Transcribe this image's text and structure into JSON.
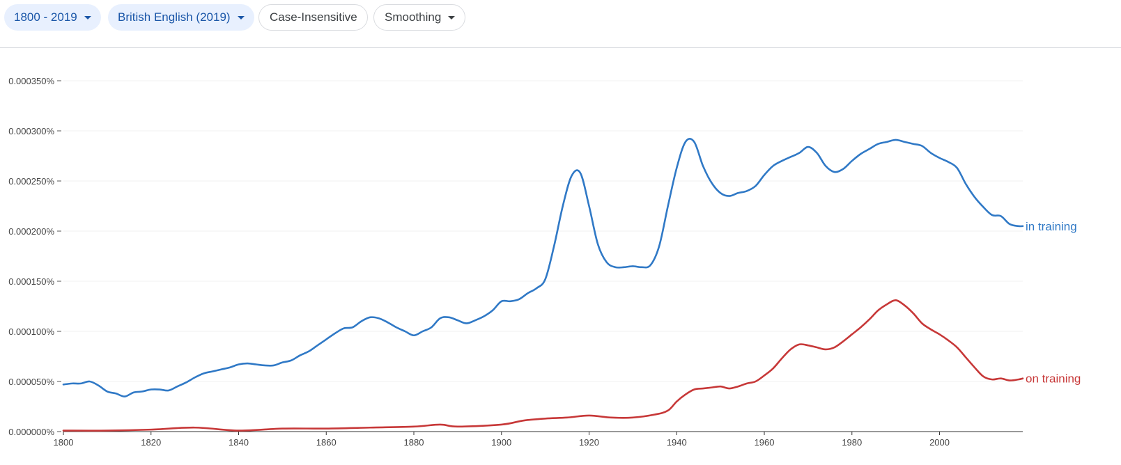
{
  "toolbar": {
    "years": {
      "label": "1800 - 2019",
      "icon": "caret-down-icon"
    },
    "corpus": {
      "label": "British English (2019)",
      "icon": "caret-down-icon"
    },
    "case": {
      "label": "Case-Insensitive"
    },
    "smoothing": {
      "label": "Smoothing",
      "icon": "caret-down-icon"
    }
  },
  "colors": {
    "accent": "#1a56a8",
    "chip_bg": "#e8f0fe",
    "in_training": "#3079c6",
    "on_training": "#c73838"
  },
  "chart_data": {
    "type": "line",
    "title": "",
    "xlabel": "",
    "ylabel": "",
    "xlim": [
      1800,
      2019
    ],
    "ylim": [
      0,
      0.00035
    ],
    "grid": true,
    "x_ticks": [
      "1800",
      "1820",
      "1840",
      "1860",
      "1880",
      "1900",
      "1920",
      "1940",
      "1960",
      "1980",
      "2000"
    ],
    "y_ticks": [
      "0.000000%",
      "0.000050%",
      "0.000100%",
      "0.000150%",
      "0.000200%",
      "0.000250%",
      "0.000300%",
      "0.000350%"
    ],
    "y_tick_values": [
      0,
      5e-05,
      0.0001,
      0.00015,
      0.0002,
      0.00025,
      0.0003,
      0.00035
    ],
    "legend": "inline-right",
    "series": [
      {
        "name": "in training",
        "x": [
          1800,
          1802,
          1804,
          1806,
          1808,
          1810,
          1812,
          1814,
          1816,
          1818,
          1820,
          1822,
          1824,
          1826,
          1828,
          1830,
          1832,
          1834,
          1836,
          1838,
          1840,
          1842,
          1844,
          1846,
          1848,
          1850,
          1852,
          1854,
          1856,
          1858,
          1860,
          1862,
          1864,
          1866,
          1868,
          1870,
          1872,
          1874,
          1876,
          1878,
          1880,
          1882,
          1884,
          1886,
          1888,
          1890,
          1892,
          1894,
          1896,
          1898,
          1900,
          1902,
          1904,
          1906,
          1908,
          1910,
          1912,
          1914,
          1916,
          1918,
          1920,
          1922,
          1924,
          1926,
          1928,
          1930,
          1932,
          1934,
          1936,
          1938,
          1940,
          1942,
          1944,
          1946,
          1948,
          1950,
          1952,
          1954,
          1956,
          1958,
          1960,
          1962,
          1964,
          1966,
          1968,
          1970,
          1972,
          1974,
          1976,
          1978,
          1980,
          1982,
          1984,
          1986,
          1988,
          1990,
          1992,
          1994,
          1996,
          1998,
          2000,
          2002,
          2004,
          2006,
          2008,
          2010,
          2012,
          2014,
          2016,
          2018,
          2019
        ],
        "values": [
          4.7e-05,
          4.8e-05,
          4.8e-05,
          5e-05,
          4.6e-05,
          4e-05,
          3.8e-05,
          3.5e-05,
          3.9e-05,
          4e-05,
          4.2e-05,
          4.2e-05,
          4.1e-05,
          4.5e-05,
          4.9e-05,
          5.4e-05,
          5.8e-05,
          6e-05,
          6.2e-05,
          6.4e-05,
          6.7e-05,
          6.8e-05,
          6.7e-05,
          6.6e-05,
          6.6e-05,
          6.9e-05,
          7.1e-05,
          7.6e-05,
          8e-05,
          8.6e-05,
          9.2e-05,
          9.8e-05,
          0.000103,
          0.000104,
          0.00011,
          0.000114,
          0.000113,
          0.000109,
          0.000104,
          0.0001,
          9.6e-05,
          0.0001,
          0.000104,
          0.000113,
          0.000114,
          0.000111,
          0.000108,
          0.000111,
          0.000115,
          0.000121,
          0.00013,
          0.00013,
          0.000132,
          0.000138,
          0.000143,
          0.000152,
          0.000185,
          0.000225,
          0.000255,
          0.000258,
          0.000225,
          0.000187,
          0.000169,
          0.000164,
          0.000164,
          0.000165,
          0.000164,
          0.000166,
          0.000185,
          0.000225,
          0.000263,
          0.000289,
          0.000289,
          0.000265,
          0.000248,
          0.000238,
          0.000235,
          0.000238,
          0.00024,
          0.000245,
          0.000256,
          0.000265,
          0.00027,
          0.000274,
          0.000278,
          0.000284,
          0.000278,
          0.000265,
          0.000259,
          0.000262,
          0.00027,
          0.000277,
          0.000282,
          0.000287,
          0.000289,
          0.000291,
          0.000289,
          0.000287,
          0.000285,
          0.000278,
          0.000273,
          0.000269,
          0.000263,
          0.000247,
          0.000234,
          0.000224,
          0.000216,
          0.000215,
          0.000207,
          0.000205,
          0.000205
        ]
      },
      {
        "name": "on training",
        "x": [
          1800,
          1810,
          1820,
          1830,
          1840,
          1850,
          1860,
          1870,
          1880,
          1886,
          1890,
          1900,
          1905,
          1910,
          1915,
          1920,
          1925,
          1930,
          1935,
          1938,
          1940,
          1942,
          1944,
          1946,
          1948,
          1950,
          1952,
          1954,
          1956,
          1958,
          1960,
          1962,
          1964,
          1966,
          1968,
          1970,
          1972,
          1974,
          1976,
          1978,
          1980,
          1982,
          1984,
          1986,
          1988,
          1990,
          1992,
          1994,
          1996,
          1998,
          2000,
          2002,
          2004,
          2006,
          2008,
          2010,
          2012,
          2014,
          2016,
          2018,
          2019
        ],
        "values": [
          1e-06,
          1e-06,
          2e-06,
          4e-06,
          1e-06,
          3e-06,
          3e-06,
          4e-06,
          5e-06,
          7e-06,
          5e-06,
          7e-06,
          1.1e-05,
          1.3e-05,
          1.4e-05,
          1.6e-05,
          1.4e-05,
          1.4e-05,
          1.7e-05,
          2.1e-05,
          3e-05,
          3.7e-05,
          4.2e-05,
          4.3e-05,
          4.4e-05,
          4.5e-05,
          4.3e-05,
          4.5e-05,
          4.8e-05,
          5e-05,
          5.6e-05,
          6.3e-05,
          7.3e-05,
          8.2e-05,
          8.7e-05,
          8.6e-05,
          8.4e-05,
          8.2e-05,
          8.4e-05,
          9e-05,
          9.7e-05,
          0.000104,
          0.000112,
          0.000121,
          0.000127,
          0.000131,
          0.000126,
          0.000118,
          0.000108,
          0.000102,
          9.7e-05,
          9.1e-05,
          8.4e-05,
          7.4e-05,
          6.4e-05,
          5.5e-05,
          5.2e-05,
          5.3e-05,
          5.1e-05,
          5.2e-05,
          5.3e-05
        ]
      }
    ]
  }
}
